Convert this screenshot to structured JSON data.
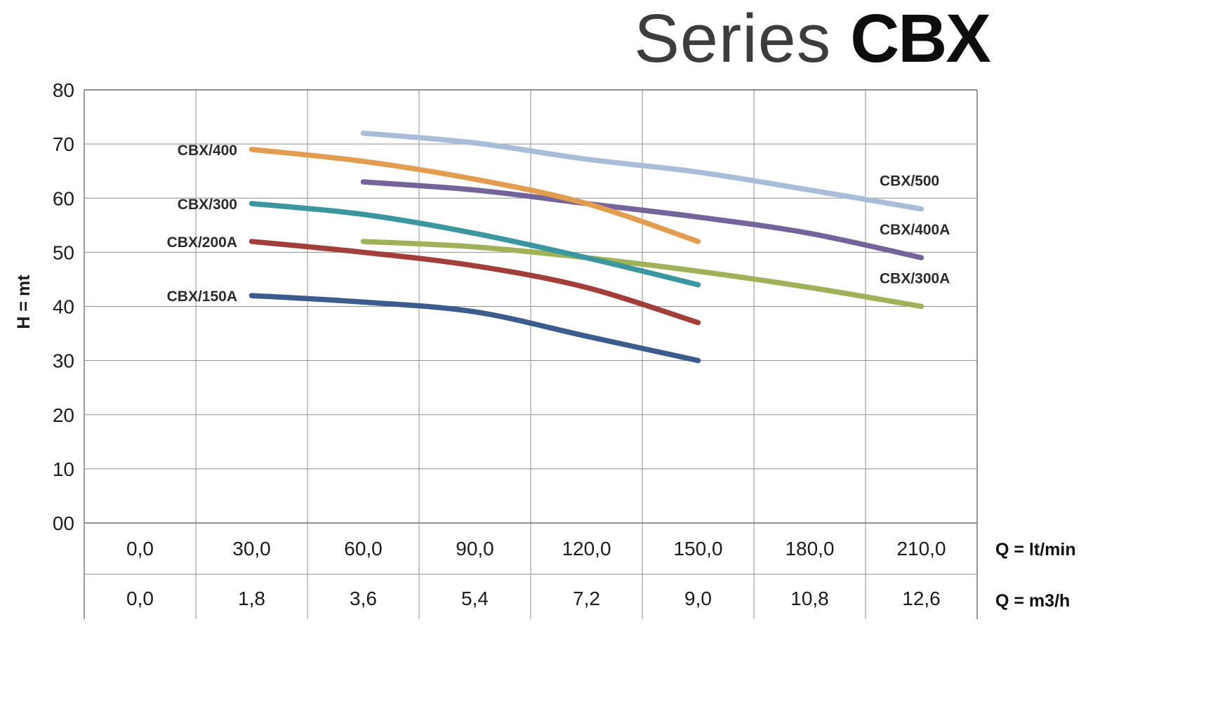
{
  "title": {
    "light": "Series",
    "bold": "CBX"
  },
  "axes": {
    "y_label": "H = mt",
    "x_unit_row1": "Q = lt/min",
    "x_unit_row2": "Q = m3/h",
    "y_ticks": [
      "80",
      "70",
      "60",
      "50",
      "40",
      "30",
      "20",
      "10",
      "00"
    ],
    "x_ticks_row1": [
      "0,0",
      "30,0",
      "60,0",
      "90,0",
      "120,0",
      "150,0",
      "180,0",
      "210,0"
    ],
    "x_ticks_row2": [
      "0,0",
      "1,8",
      "3,6",
      "5,4",
      "7,2",
      "9,0",
      "10,8",
      "12,6"
    ]
  },
  "chart_data": {
    "type": "line",
    "title": "Series CBX",
    "xlabel": "Q = lt/min",
    "xlabel_secondary": "Q = m3/h",
    "ylabel": "H = mt",
    "xlim": [
      0,
      225
    ],
    "ylim": [
      0,
      80
    ],
    "grid": true,
    "x_ticks_lt_min": [
      0,
      30,
      60,
      90,
      120,
      150,
      180,
      210
    ],
    "x_ticks_m3_h": [
      0,
      1.8,
      3.6,
      5.4,
      7.2,
      9.0,
      10.8,
      12.6
    ],
    "series": [
      {
        "name": "CBX/500",
        "color": "#a9bdd8",
        "label_side": "right",
        "points": [
          [
            60,
            72
          ],
          [
            90,
            70.2
          ],
          [
            120,
            67.2
          ],
          [
            150,
            64.8
          ],
          [
            180,
            61.5
          ],
          [
            210,
            58
          ]
        ]
      },
      {
        "name": "CBX/400A",
        "color": "#75639b",
        "label_side": "right",
        "points": [
          [
            60,
            63
          ],
          [
            90,
            61.5
          ],
          [
            120,
            59
          ],
          [
            150,
            56.5
          ],
          [
            180,
            53.5
          ],
          [
            210,
            49
          ]
        ]
      },
      {
        "name": "CBX/400",
        "color": "#e29d51",
        "label_side": "left",
        "points": [
          [
            30,
            69
          ],
          [
            60,
            66.8
          ],
          [
            90,
            63.5
          ],
          [
            120,
            59
          ],
          [
            150,
            52
          ]
        ]
      },
      {
        "name": "CBX/300A",
        "color": "#9fb259",
        "label_side": "right",
        "points": [
          [
            60,
            52
          ],
          [
            90,
            51
          ],
          [
            120,
            49
          ],
          [
            150,
            46.5
          ],
          [
            180,
            43.5
          ],
          [
            210,
            40
          ]
        ]
      },
      {
        "name": "CBX/300",
        "color": "#3b96a0",
        "label_side": "left",
        "points": [
          [
            30,
            59
          ],
          [
            60,
            57
          ],
          [
            90,
            53.5
          ],
          [
            120,
            49
          ],
          [
            150,
            44
          ]
        ]
      },
      {
        "name": "CBX/200A",
        "color": "#a33f3b",
        "label_side": "left",
        "points": [
          [
            30,
            52
          ],
          [
            60,
            50
          ],
          [
            90,
            47.5
          ],
          [
            120,
            43.5
          ],
          [
            150,
            37
          ]
        ]
      },
      {
        "name": "CBX/150A",
        "color": "#3c5c8d",
        "label_side": "left",
        "points": [
          [
            30,
            42
          ],
          [
            60,
            40.8
          ],
          [
            90,
            39
          ],
          [
            120,
            34.5
          ],
          [
            150,
            30
          ]
        ]
      }
    ]
  }
}
